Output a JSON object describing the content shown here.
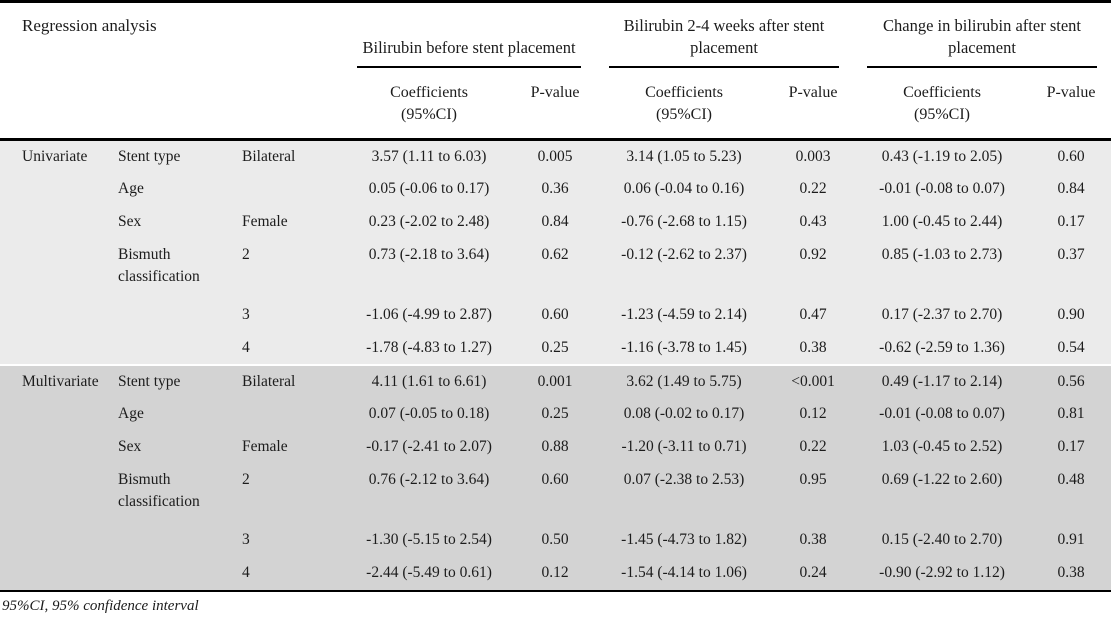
{
  "table": {
    "title": "Regression analysis",
    "groups": [
      {
        "label": "Bilirubin before stent placement",
        "coeff_header": "Coefficients",
        "coeff_header_line2": "(95%CI)",
        "pvalue_header": "P-value"
      },
      {
        "label": "Bilirubin 2-4 weeks after stent placement",
        "coeff_header": "Coefficients",
        "coeff_header_line2": "(95%CI)",
        "pvalue_header": "P-value"
      },
      {
        "label": "Change in bilirubin after stent placement",
        "coeff_header": "Coefficients",
        "coeff_header_line2": "(95%CI)",
        "pvalue_header": "P-value"
      }
    ],
    "sections": [
      {
        "name": "Univariate",
        "rows": [
          {
            "variable": "Stent type",
            "category": "Bilateral",
            "tall": false,
            "values": [
              "3.57 (1.11 to 6.03)",
              "0.005",
              "3.14 (1.05 to 5.23)",
              "0.003",
              "0.43 (-1.19 to 2.05)",
              "0.60"
            ]
          },
          {
            "variable": "Age",
            "category": "",
            "tall": false,
            "values": [
              "0.05 (-0.06 to 0.17)",
              "0.36",
              "0.06 (-0.04 to 0.16)",
              "0.22",
              "-0.01 (-0.08 to 0.07)",
              "0.84"
            ]
          },
          {
            "variable": "Sex",
            "category": "Female",
            "tall": false,
            "values": [
              "0.23 (-2.02 to 2.48)",
              "0.84",
              "-0.76 (-2.68 to 1.15)",
              "0.43",
              "1.00 (-0.45 to 2.44)",
              "0.17"
            ]
          },
          {
            "variable": "Bismuth classification",
            "category": "2",
            "tall": true,
            "values": [
              "0.73 (-2.18 to 3.64)",
              "0.62",
              "-0.12 (-2.62 to 2.37)",
              "0.92",
              "0.85 (-1.03 to 2.73)",
              "0.37"
            ]
          },
          {
            "variable": "",
            "category": "3",
            "tall": false,
            "values": [
              "-1.06 (-4.99 to 2.87)",
              "0.60",
              "-1.23 (-4.59 to 2.14)",
              "0.47",
              "0.17 (-2.37 to 2.70)",
              "0.90"
            ]
          },
          {
            "variable": "",
            "category": "4",
            "tall": false,
            "values": [
              "-1.78 (-4.83 to 1.27)",
              "0.25",
              "-1.16 (-3.78 to 1.45)",
              "0.38",
              "-0.62 (-2.59 to 1.36)",
              "0.54"
            ]
          }
        ]
      },
      {
        "name": "Multivariate",
        "rows": [
          {
            "variable": "Stent type",
            "category": "Bilateral",
            "tall": false,
            "values": [
              "4.11 (1.61 to 6.61)",
              "0.001",
              "3.62 (1.49 to 5.75)",
              "<0.001",
              "0.49 (-1.17 to 2.14)",
              "0.56"
            ]
          },
          {
            "variable": "Age",
            "category": "",
            "tall": false,
            "values": [
              "0.07 (-0.05 to 0.18)",
              "0.25",
              "0.08 (-0.02 to 0.17)",
              "0.12",
              "-0.01 (-0.08 to 0.07)",
              "0.81"
            ]
          },
          {
            "variable": "Sex",
            "category": "Female",
            "tall": false,
            "values": [
              "-0.17 (-2.41 to 2.07)",
              "0.88",
              "-1.20 (-3.11 to 0.71)",
              "0.22",
              "1.03 (-0.45 to 2.52)",
              "0.17"
            ]
          },
          {
            "variable": "Bismuth classification",
            "category": "2",
            "tall": true,
            "values": [
              "0.76 (-2.12 to 3.64)",
              "0.60",
              "0.07 (-2.38 to 2.53)",
              "0.95",
              "0.69 (-1.22 to 2.60)",
              "0.48"
            ]
          },
          {
            "variable": "",
            "category": "3",
            "tall": false,
            "values": [
              "-1.30 (-5.15 to 2.54)",
              "0.50",
              "-1.45 (-4.73 to 1.82)",
              "0.38",
              "0.15 (-2.40 to 2.70)",
              "0.91"
            ]
          },
          {
            "variable": "",
            "category": "4",
            "tall": false,
            "values": [
              "-2.44 (-5.49 to 0.61)",
              "0.12",
              "-1.54 (-4.14 to 1.06)",
              "0.24",
              "-0.90 (-2.92 to 1.12)",
              "0.38"
            ]
          }
        ]
      }
    ],
    "footnote": "95%CI, 95% confidence interval",
    "colors": {
      "univariate_bg": "#ebebeb",
      "multivariate_bg": "#d3d3d3",
      "border": "#000000",
      "text": "#1c1c1c"
    }
  }
}
